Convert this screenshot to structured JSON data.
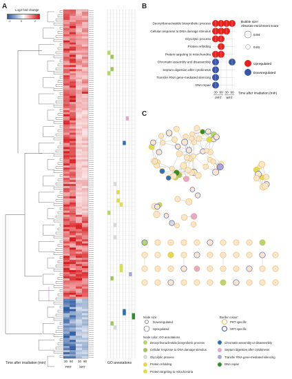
{
  "panels": {
    "a": "A",
    "b": "B",
    "c": "C"
  },
  "panel_a": {
    "colorbar_title": "Log2 fold change",
    "colorbar_ticks": [
      "-2",
      "0",
      "2"
    ],
    "time_axis_label": "Time after irradiation (min)",
    "time_ticks": [
      "30",
      "90",
      "30",
      "90"
    ],
    "groups": [
      "PRT",
      "XRT"
    ],
    "go_header": "GO annotations",
    "colors": {
      "up": "#d7191c",
      "down": "#2c5aa0",
      "neutral": "#ffffff"
    }
  },
  "panel_b": {
    "bubble_size_title": "Bubble size:",
    "bubble_size_subtitle": "Absolute enrichment score",
    "size_values": [
      "0.94",
      "0.61"
    ],
    "legend_up": "Upregulated",
    "legend_down": "Downregulated",
    "x_ticks": [
      "30",
      "90",
      "30",
      "90"
    ],
    "groups": [
      "PRT",
      "XRT"
    ],
    "axis_label": "Time after irradiation (min)",
    "terms": [
      {
        "label": "Deoxyribonucleotide biosynthetic process",
        "cells": [
          1,
          1,
          1,
          1
        ]
      },
      {
        "label": "Cellular response to DNA damage stimulus",
        "cells": [
          1,
          1,
          1,
          0
        ]
      },
      {
        "label": "Glycolytic process",
        "cells": [
          1,
          1,
          0,
          0
        ]
      },
      {
        "label": "Protein refolding",
        "cells": [
          0,
          1,
          0,
          0
        ]
      },
      {
        "label": "Protein targeting to mitochondria",
        "cells": [
          1,
          1,
          0,
          0
        ]
      },
      {
        "label": "Chromatin assembly and disassembly",
        "cells": [
          -1,
          0,
          0,
          -1
        ]
      },
      {
        "label": "Septum digestion after cytokinesis",
        "cells": [
          -1,
          0,
          0,
          0
        ]
      },
      {
        "label": "Transfer RNA gene-mediated silencing",
        "cells": [
          -1,
          0,
          0,
          0
        ]
      },
      {
        "label": "DNA repair",
        "cells": [
          -1,
          0,
          0,
          0
        ]
      }
    ],
    "colors": {
      "up": "#e8201e",
      "down": "#3a56a8"
    }
  },
  "panel_c": {
    "node_size_title": "Node size:",
    "node_size_items": [
      "Downregulated",
      "Upregulated"
    ],
    "border_title": "Border colour:",
    "border_items": [
      {
        "label": "PRT specific",
        "color": "#e6b85c"
      },
      {
        "label": "XRT specific",
        "color": "#3a56a8"
      }
    ],
    "node_color_title": "Node color: GO annotations",
    "go_items": [
      {
        "label": "Deoxyribonucleotide biosynthetic process",
        "color": "#b5d66b"
      },
      {
        "label": "Cellular response to DNA damage stimulus",
        "color": "#9ec45a"
      },
      {
        "label": "Glycolytic process",
        "color": "#d9d9d9"
      },
      {
        "label": "Protein refolding",
        "color": "#e8d84a"
      },
      {
        "label": "Protein targeting to mitochondria",
        "color": "#d9e04a"
      },
      {
        "label": "Chromatin assembly or disassembly",
        "color": "#2f6fb5"
      },
      {
        "label": "Septum digestion after cytokinesis",
        "color": "#e8a6c8"
      },
      {
        "label": "Transfer RNA gene-mediated silencing",
        "color": "#a8a6dc"
      },
      {
        "label": "DNA repair",
        "color": "#2f8f2f"
      }
    ],
    "node_fill": "#fbe6cc"
  }
}
